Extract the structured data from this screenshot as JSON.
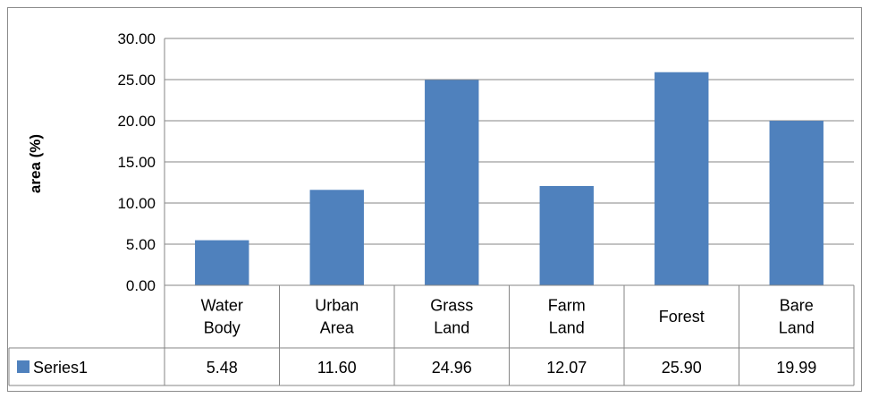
{
  "chart_data": {
    "type": "bar",
    "categories": [
      [
        "Water",
        "Body"
      ],
      [
        "Urban",
        "Area"
      ],
      [
        "Grass",
        "Land"
      ],
      [
        "Farm",
        "Land"
      ],
      [
        "Forest"
      ],
      [
        "Bare",
        "Land"
      ]
    ],
    "series": [
      {
        "name": "Series1",
        "values": [
          5.48,
          11.6,
          24.96,
          12.07,
          25.9,
          19.99
        ],
        "value_labels": [
          "5.48",
          "11.60",
          "24.96",
          "12.07",
          "25.90",
          "19.99"
        ],
        "color": "#4f81bd"
      }
    ],
    "ylabel": "area (%)",
    "ylim": [
      0,
      30
    ],
    "yticks": [
      "0.00",
      "5.00",
      "10.00",
      "15.00",
      "20.00",
      "25.00",
      "30.00"
    ],
    "grid": true,
    "legend": "data-table",
    "data_table": true
  }
}
